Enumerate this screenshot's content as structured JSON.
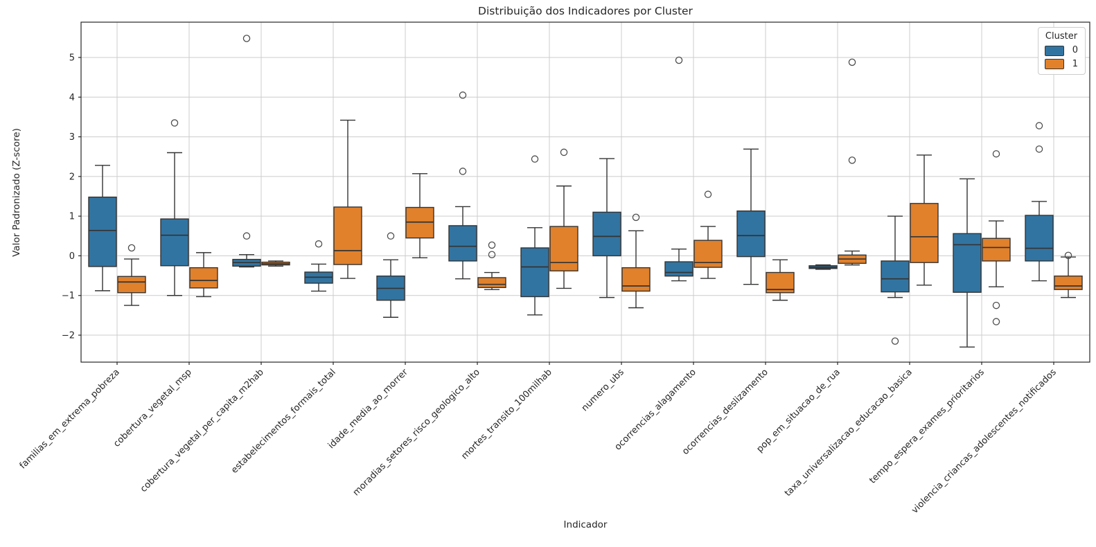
{
  "figure": {
    "title": "Distribuição dos Indicadores por Cluster",
    "xlabel": "Indicador",
    "ylabel": "Valor Padronizado (Z-score)"
  },
  "legend": {
    "title": "Cluster",
    "entries": [
      {
        "label": "0",
        "color": "#3274a1"
      },
      {
        "label": "1",
        "color": "#e1812c"
      }
    ]
  },
  "style": {
    "cluster0_color": "#3274a1",
    "cluster1_color": "#e1812c",
    "edge_color": "#333333",
    "flier_color": "#4d4d4d",
    "grid_color": "#cccccc",
    "spine_color": "#262626",
    "text_color": "#262626",
    "background": "#ffffff"
  },
  "chart_data": {
    "type": "boxplot",
    "title": "Distribuição dos Indicadores por Cluster",
    "xlabel": "Indicador",
    "ylabel": "Valor Padronizado (Z-score)",
    "grid": true,
    "legend_title": "Cluster",
    "legend_position": "upper right",
    "y_ticks": [
      5,
      4,
      3,
      2,
      1,
      0,
      -1,
      -2
    ],
    "ylim": [
      -2.68,
      5.89
    ],
    "categories": [
      "familias_em_extrema_pobreza",
      "cobertura_vegetal_msp",
      "cobertura_vegetal_per_capita_m2hab",
      "estabelecimentos_formais_total",
      "idade_media_ao_morrer",
      "moradias_setores_risco_geologico_alto",
      "mortes_transito_100milhab",
      "numero_ubs",
      "ocorrencias_alagamento",
      "ocorrencias_deslizamento",
      "pop_em_situacao_de_rua",
      "taxa_universalizacao_educacao_basica",
      "tempo_espera_exames_prioritarios",
      "violencia_criancas_adolescentes_notificados"
    ],
    "series": [
      {
        "name": "0",
        "color": "#3274a1",
        "boxes": [
          {
            "whislo": -0.88,
            "q1": -0.27,
            "med": 0.64,
            "q3": 1.48,
            "whishi": 2.28,
            "fliers": []
          },
          {
            "whislo": -1.0,
            "q1": -0.25,
            "med": 0.52,
            "q3": 0.93,
            "whishi": 2.6,
            "fliers": [
              3.35
            ]
          },
          {
            "whislo": -0.28,
            "q1": -0.26,
            "med": -0.17,
            "q3": -0.09,
            "whishi": 0.03,
            "fliers": [
              0.5,
              5.48
            ]
          },
          {
            "whislo": -0.89,
            "q1": -0.69,
            "med": -0.54,
            "q3": -0.41,
            "whishi": -0.21,
            "fliers": [
              0.3
            ]
          },
          {
            "whislo": -1.55,
            "q1": -1.12,
            "med": -0.82,
            "q3": -0.51,
            "whishi": -0.1,
            "fliers": [
              0.5
            ]
          },
          {
            "whislo": -0.58,
            "q1": -0.13,
            "med": 0.24,
            "q3": 0.76,
            "whishi": 1.24,
            "fliers": [
              2.13,
              4.05
            ]
          },
          {
            "whislo": -1.49,
            "q1": -1.03,
            "med": -0.28,
            "q3": 0.2,
            "whishi": 0.71,
            "fliers": [
              2.44
            ]
          },
          {
            "whislo": -1.05,
            "q1": 0.0,
            "med": 0.49,
            "q3": 1.1,
            "whishi": 2.45,
            "fliers": []
          },
          {
            "whislo": -0.63,
            "q1": -0.51,
            "med": -0.42,
            "q3": -0.15,
            "whishi": 0.17,
            "fliers": [
              4.93
            ]
          },
          {
            "whislo": -0.72,
            "q1": -0.02,
            "med": 0.51,
            "q3": 1.13,
            "whishi": 2.69,
            "fliers": []
          },
          {
            "whislo": -0.34,
            "q1": -0.32,
            "med": -0.29,
            "q3": -0.25,
            "whishi": -0.23,
            "fliers": []
          },
          {
            "whislo": -1.05,
            "q1": -0.91,
            "med": -0.58,
            "q3": -0.13,
            "whishi": 1.0,
            "fliers": [
              -2.15
            ]
          },
          {
            "whislo": -2.3,
            "q1": -0.92,
            "med": 0.28,
            "q3": 0.56,
            "whishi": 1.94,
            "fliers": []
          },
          {
            "whislo": -0.63,
            "q1": -0.13,
            "med": 0.19,
            "q3": 1.02,
            "whishi": 1.37,
            "fliers": [
              2.69,
              3.28
            ]
          }
        ]
      },
      {
        "name": "1",
        "color": "#e1812c",
        "boxes": [
          {
            "whislo": -1.25,
            "q1": -0.93,
            "med": -0.66,
            "q3": -0.52,
            "whishi": -0.08,
            "fliers": [
              0.2
            ]
          },
          {
            "whislo": -1.03,
            "q1": -0.81,
            "med": -0.62,
            "q3": -0.3,
            "whishi": 0.08,
            "fliers": []
          },
          {
            "whislo": -0.26,
            "q1": -0.23,
            "med": -0.2,
            "q3": -0.16,
            "whishi": -0.13,
            "fliers": []
          },
          {
            "whislo": -0.57,
            "q1": -0.22,
            "med": 0.13,
            "q3": 1.23,
            "whishi": 3.42,
            "fliers": []
          },
          {
            "whislo": -0.05,
            "q1": 0.45,
            "med": 0.85,
            "q3": 1.22,
            "whishi": 2.07,
            "fliers": []
          },
          {
            "whislo": -0.85,
            "q1": -0.8,
            "med": -0.72,
            "q3": -0.55,
            "whishi": -0.42,
            "fliers": [
              0.03,
              0.27
            ]
          },
          {
            "whislo": -0.82,
            "q1": -0.38,
            "med": -0.17,
            "q3": 0.74,
            "whishi": 1.76,
            "fliers": [
              2.61
            ]
          },
          {
            "whislo": -1.31,
            "q1": -0.89,
            "med": -0.76,
            "q3": -0.3,
            "whishi": 0.63,
            "fliers": [
              0.97
            ]
          },
          {
            "whislo": -0.57,
            "q1": -0.29,
            "med": -0.17,
            "q3": 0.39,
            "whishi": 0.74,
            "fliers": [
              1.55
            ]
          },
          {
            "whislo": -1.12,
            "q1": -0.93,
            "med": -0.85,
            "q3": -0.42,
            "whishi": -0.1,
            "fliers": []
          },
          {
            "whislo": -0.23,
            "q1": -0.19,
            "med": -0.08,
            "q3": 0.02,
            "whishi": 0.12,
            "fliers": [
              2.41,
              4.88
            ]
          },
          {
            "whislo": -0.74,
            "q1": -0.17,
            "med": 0.48,
            "q3": 1.32,
            "whishi": 2.54,
            "fliers": []
          },
          {
            "whislo": -0.78,
            "q1": -0.13,
            "med": 0.21,
            "q3": 0.44,
            "whishi": 0.88,
            "fliers": [
              -1.66,
              -1.25,
              2.57
            ]
          },
          {
            "whislo": -1.05,
            "q1": -0.85,
            "med": -0.76,
            "q3": -0.51,
            "whishi": -0.03,
            "fliers": [
              0.01
            ]
          }
        ]
      }
    ]
  }
}
